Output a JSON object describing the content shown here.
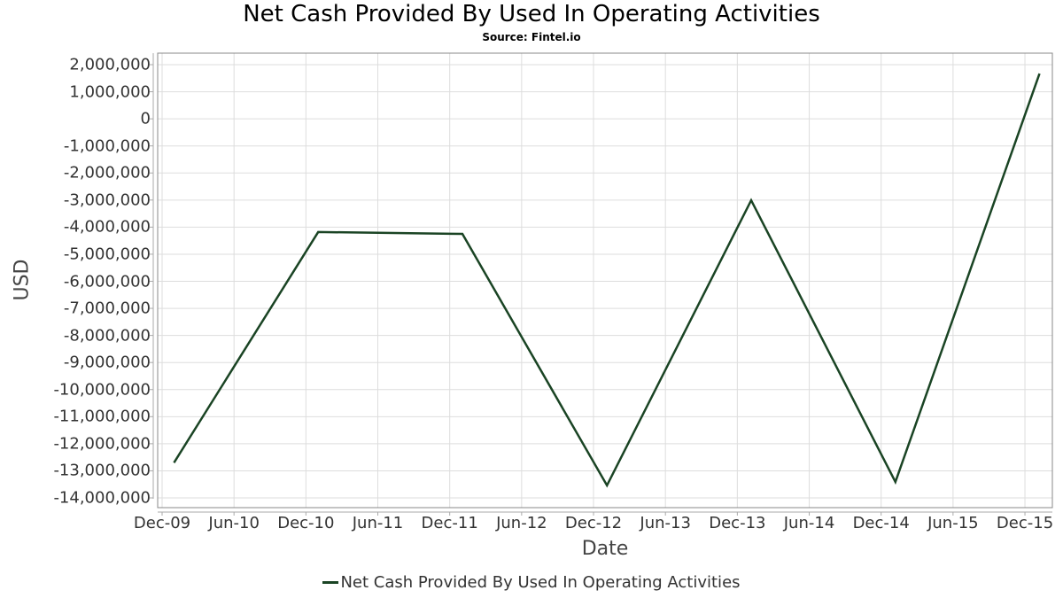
{
  "header": {
    "title": "Net Cash Provided By Used In Operating Activities",
    "subtitle": "Source: Fintel.io"
  },
  "axes": {
    "ylabel": "USD",
    "xlabel": "Date",
    "yticks": [
      "2,000,000",
      "1,000,000",
      "0",
      "-1,000,000",
      "-2,000,000",
      "-3,000,000",
      "-4,000,000",
      "-5,000,000",
      "-6,000,000",
      "-7,000,000",
      "-8,000,000",
      "-9,000,000",
      "-10,000,000",
      "-11,000,000",
      "-12,000,000",
      "-13,000,000",
      "-14,000,000"
    ],
    "xticks": [
      "Dec-09",
      "Jun-10",
      "Dec-10",
      "Jun-11",
      "Dec-11",
      "Jun-12",
      "Dec-12",
      "Jun-13",
      "Dec-13",
      "Jun-14",
      "Dec-14",
      "Jun-15",
      "Dec-15"
    ]
  },
  "legend": {
    "label": "Net Cash Provided By Used In Operating Activities"
  },
  "colors": {
    "series": "#1a4424",
    "grid": "#dddddd",
    "frame": "#888888"
  },
  "chart_data": {
    "type": "line",
    "title": "Net Cash Provided By Used In Operating Activities",
    "subtitle": "Source: Fintel.io",
    "xlabel": "Date",
    "ylabel": "USD",
    "ylim": [
      -14300000,
      2400000
    ],
    "grid": true,
    "legend_position": "bottom",
    "x": [
      "2009-12-31",
      "2010-12-31",
      "2011-12-31",
      "2012-12-31",
      "2013-12-31",
      "2014-12-31",
      "2015-12-31"
    ],
    "series": [
      {
        "name": "Net Cash Provided By Used In Operating Activities",
        "values": [
          -12700000,
          -4180000,
          -4250000,
          -13540000,
          -3010000,
          -13410000,
          1670000
        ]
      }
    ]
  }
}
